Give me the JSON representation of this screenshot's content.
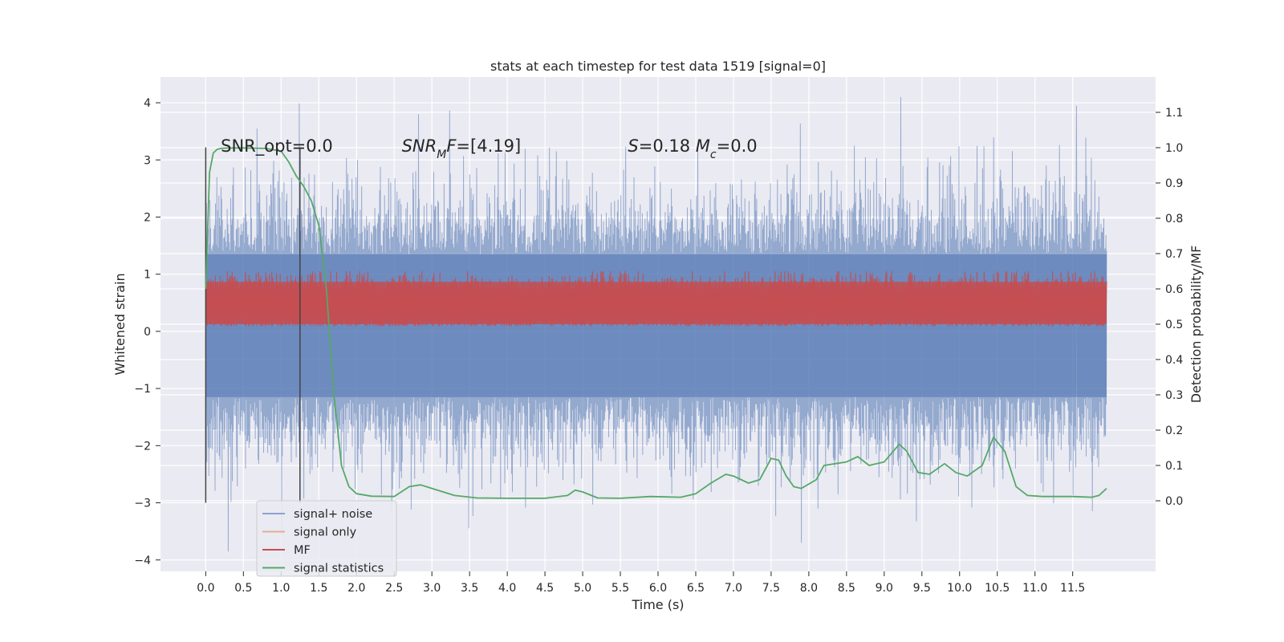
{
  "chart_data": {
    "type": "line",
    "title": "stats at each timestep for test data 1519 [signal=0]",
    "xlabel": "Time (s)",
    "ylabel_left": "Whitened strain",
    "ylabel_right": "Detection probability/MF",
    "xlim": [
      -0.6,
      12.6
    ],
    "ylim_left": [
      -4.2,
      4.45
    ],
    "ylim_right": [
      -0.2,
      1.2
    ],
    "x_ticks": [
      0.0,
      0.5,
      1.0,
      1.5,
      2.0,
      2.5,
      3.0,
      3.5,
      4.0,
      4.5,
      5.0,
      5.5,
      6.0,
      6.5,
      7.0,
      7.5,
      8.0,
      8.5,
      9.0,
      9.5,
      10.0,
      10.5,
      11.0,
      11.5
    ],
    "x_tick_labels": [
      "0.0",
      "0.5",
      "1.0",
      "1.5",
      "2.0",
      "2.5",
      "3.0",
      "3.5",
      "4.0",
      "4.5",
      "5.0",
      "5.5",
      "6.0",
      "6.5",
      "7.0",
      "7.5",
      "8.0",
      "8.5",
      "9.0",
      "9.5",
      "10.0",
      "10.5",
      "11.0",
      "11.5"
    ],
    "y_left_ticks": [
      -4,
      -3,
      -2,
      -1,
      0,
      1,
      2,
      3,
      4
    ],
    "y_left_tick_labels": [
      "−4",
      "−3",
      "−2",
      "−1",
      "0",
      "1",
      "2",
      "3",
      "4"
    ],
    "y_right_ticks": [
      0.0,
      0.1,
      0.2,
      0.3,
      0.4,
      0.5,
      0.6,
      0.7,
      0.8,
      0.9,
      1.0,
      1.1
    ],
    "y_right_tick_labels": [
      "0.0",
      "0.1",
      "0.2",
      "0.3",
      "0.4",
      "0.5",
      "0.6",
      "0.7",
      "0.8",
      "0.9",
      "1.0",
      "1.1"
    ],
    "grid": true,
    "legend_position": "lower-left",
    "annotations": [
      {
        "x": 0.2,
        "y": 3.2,
        "parts": [
          {
            "t": "SNR_opt=0.0",
            "i": false
          }
        ]
      },
      {
        "x": 2.6,
        "y": 3.2,
        "parts": [
          {
            "t": "SNR",
            "i": true
          },
          {
            "t": "M",
            "i": true,
            "sub": true
          },
          {
            "t": "F",
            "i": true
          },
          {
            "t": "=[4.19]",
            "i": false
          }
        ]
      },
      {
        "x": 5.6,
        "y": 3.2,
        "parts": [
          {
            "t": "S",
            "i": true
          },
          {
            "t": "=0.18   ",
            "i": false
          },
          {
            "t": "M",
            "i": true
          },
          {
            "t": "c",
            "i": true,
            "sub": true
          },
          {
            "t": "=0.0",
            "i": false
          }
        ]
      }
    ],
    "vlines": [
      {
        "x": 0.0,
        "ymin": -3.0,
        "ymax": 3.22
      },
      {
        "x": 1.25,
        "ymin": -3.0,
        "ymax": 3.22
      }
    ],
    "noise_envelope": {
      "x_range": [
        0.0,
        11.95
      ],
      "y_range": [
        -3.85,
        4.1
      ],
      "core_range": [
        -2.0,
        2.0
      ],
      "dense_band": [
        -1.15,
        1.35
      ],
      "notable_peaks": [
        [
          0.68,
          3.55
        ],
        [
          2.82,
          3.8
        ],
        [
          9.22,
          4.1
        ],
        [
          11.55,
          3.95
        ],
        [
          0.3,
          -3.85
        ],
        [
          7.9,
          -3.7
        ]
      ]
    },
    "series": [
      {
        "name": "signal+ noise",
        "color": "#4c72b0",
        "axis": "left"
      },
      {
        "name": "signal only",
        "color": "#dd8452",
        "axis": "left"
      },
      {
        "name": "MF",
        "color": "#c44e52",
        "axis": "right",
        "band": [
          0.5,
          0.62
        ],
        "max": 0.65
      },
      {
        "name": "signal statistics",
        "color": "#55a868",
        "axis": "right",
        "x": [
          0.0,
          0.05,
          0.1,
          0.15,
          0.2,
          0.3,
          0.5,
          0.8,
          1.0,
          1.1,
          1.2,
          1.3,
          1.4,
          1.5,
          1.6,
          1.7,
          1.8,
          1.9,
          2.0,
          2.2,
          2.5,
          2.7,
          2.85,
          3.0,
          3.3,
          3.6,
          4.0,
          4.5,
          4.8,
          4.9,
          5.0,
          5.2,
          5.5,
          5.9,
          6.3,
          6.5,
          6.7,
          6.9,
          7.0,
          7.2,
          7.35,
          7.5,
          7.6,
          7.7,
          7.8,
          7.9,
          8.1,
          8.2,
          8.35,
          8.5,
          8.65,
          8.8,
          9.0,
          9.2,
          9.3,
          9.45,
          9.6,
          9.8,
          9.95,
          10.1,
          10.3,
          10.45,
          10.6,
          10.75,
          10.9,
          11.1,
          11.5,
          11.75,
          11.85,
          11.95
        ],
        "values": [
          0.6,
          0.93,
          0.985,
          0.995,
          0.998,
          0.999,
          0.999,
          0.998,
          0.99,
          0.96,
          0.92,
          0.89,
          0.85,
          0.78,
          0.6,
          0.3,
          0.1,
          0.04,
          0.02,
          0.013,
          0.012,
          0.04,
          0.045,
          0.035,
          0.015,
          0.008,
          0.007,
          0.007,
          0.015,
          0.03,
          0.025,
          0.008,
          0.007,
          0.012,
          0.01,
          0.02,
          0.05,
          0.075,
          0.07,
          0.05,
          0.06,
          0.12,
          0.115,
          0.07,
          0.04,
          0.035,
          0.06,
          0.1,
          0.105,
          0.11,
          0.125,
          0.1,
          0.11,
          0.16,
          0.14,
          0.08,
          0.075,
          0.105,
          0.08,
          0.07,
          0.1,
          0.18,
          0.14,
          0.04,
          0.015,
          0.012,
          0.012,
          0.01,
          0.015,
          0.035
        ]
      }
    ]
  }
}
